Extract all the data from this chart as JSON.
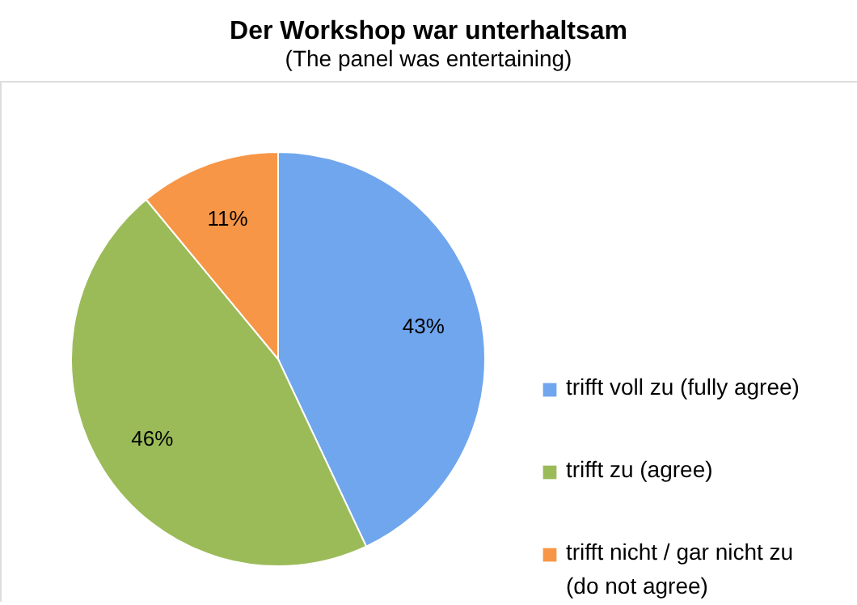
{
  "chart_data": {
    "type": "pie",
    "title": "Der Workshop war unterhaltsam",
    "subtitle": "(The panel was entertaining)",
    "categories": [
      "trifft voll zu (fully agree)",
      "trifft zu (agree)",
      "trifft nicht / gar nicht zu (do not agree)"
    ],
    "values": [
      43,
      46,
      11
    ],
    "colors": [
      "#6fa6ee",
      "#9bbb59",
      "#f79646"
    ],
    "value_labels": [
      "43%",
      "46%",
      "11%"
    ],
    "legend": "right"
  }
}
